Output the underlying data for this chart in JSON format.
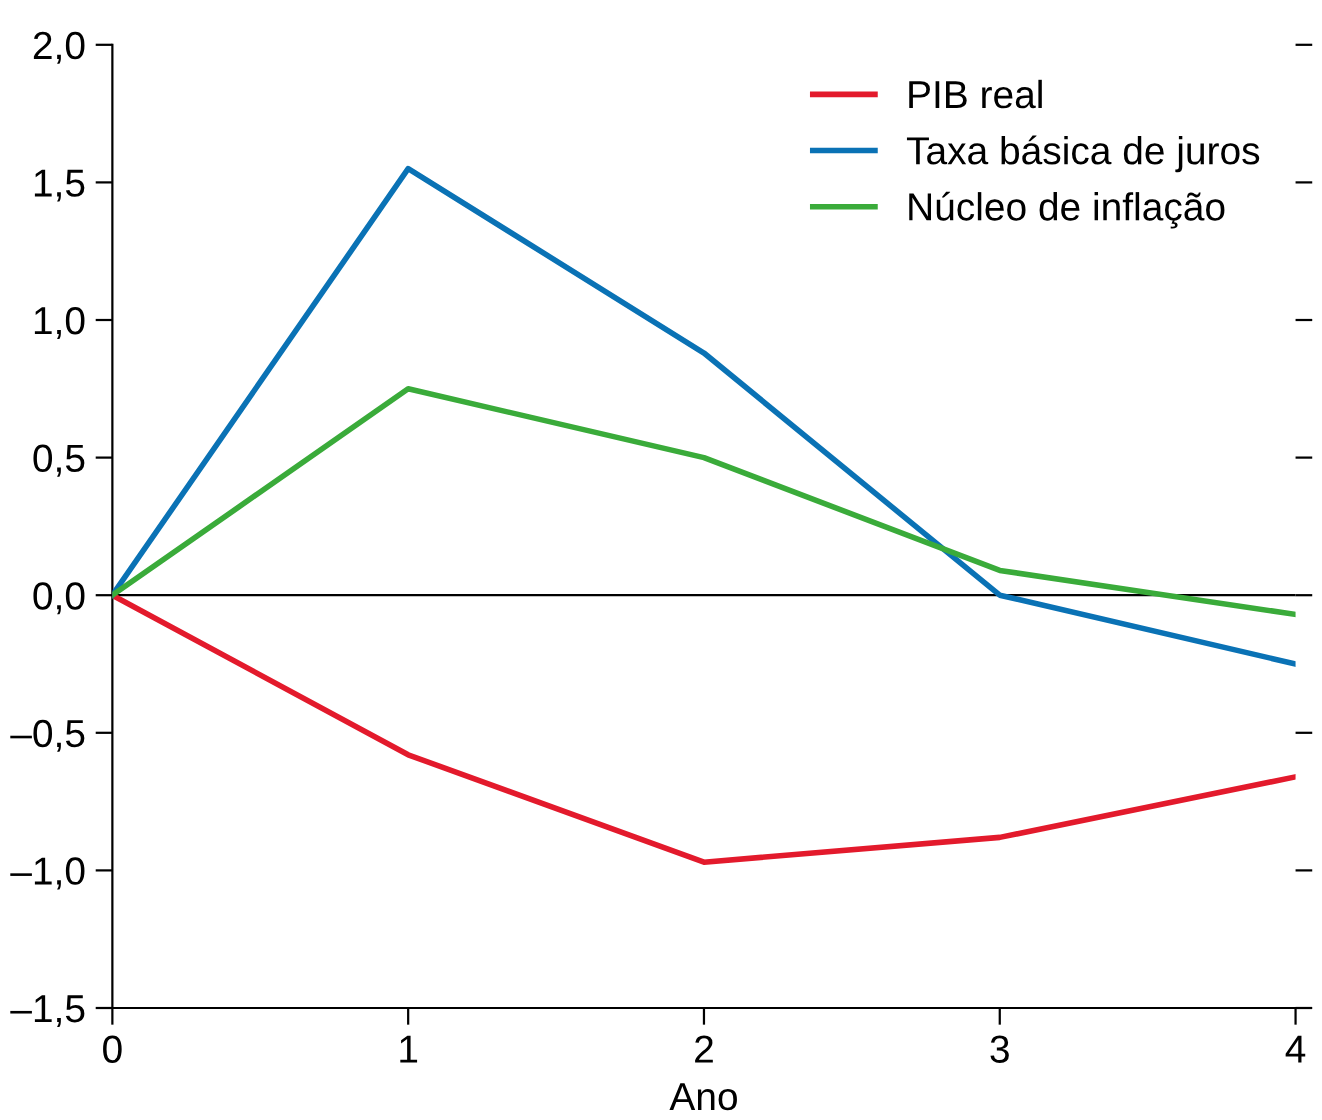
{
  "chart_data": {
    "type": "line",
    "xlabel": "Ano",
    "x": [
      0,
      1,
      2,
      3,
      4
    ],
    "series": [
      {
        "name": "PIB real",
        "color": "#e31a2c",
        "values": [
          0,
          -0.58,
          -0.97,
          -0.88,
          -0.66
        ]
      },
      {
        "name": "Taxa básica de juros",
        "color": "#0a72b5",
        "values": [
          0,
          1.55,
          0.88,
          0.0,
          -0.25
        ]
      },
      {
        "name": "Núcleo de inflação",
        "color": "#3aab3a",
        "values": [
          0,
          0.75,
          0.5,
          0.09,
          -0.07
        ]
      }
    ],
    "xlim": [
      0,
      4
    ],
    "xticks": [
      0,
      1,
      2,
      3,
      4
    ],
    "ylim": [
      -1.5,
      2.0
    ],
    "yticks": [
      {
        "value": -1.5,
        "label": "–1,5"
      },
      {
        "value": -1.0,
        "label": "–1,0"
      },
      {
        "value": -0.5,
        "label": "–0,5"
      },
      {
        "value": 0,
        "label": "0,0"
      },
      {
        "value": 0.5,
        "label": "0,5"
      },
      {
        "value": 1.0,
        "label": "1,0"
      },
      {
        "value": 1.5,
        "label": "1,5"
      },
      {
        "value": 2.0,
        "label": "2,0"
      }
    ],
    "ref_lines": [
      {
        "axis": "y",
        "value": 0,
        "color": "#000000"
      }
    ],
    "legend": "top right",
    "grid": false,
    "marker": "none",
    "line_style": "solid"
  }
}
